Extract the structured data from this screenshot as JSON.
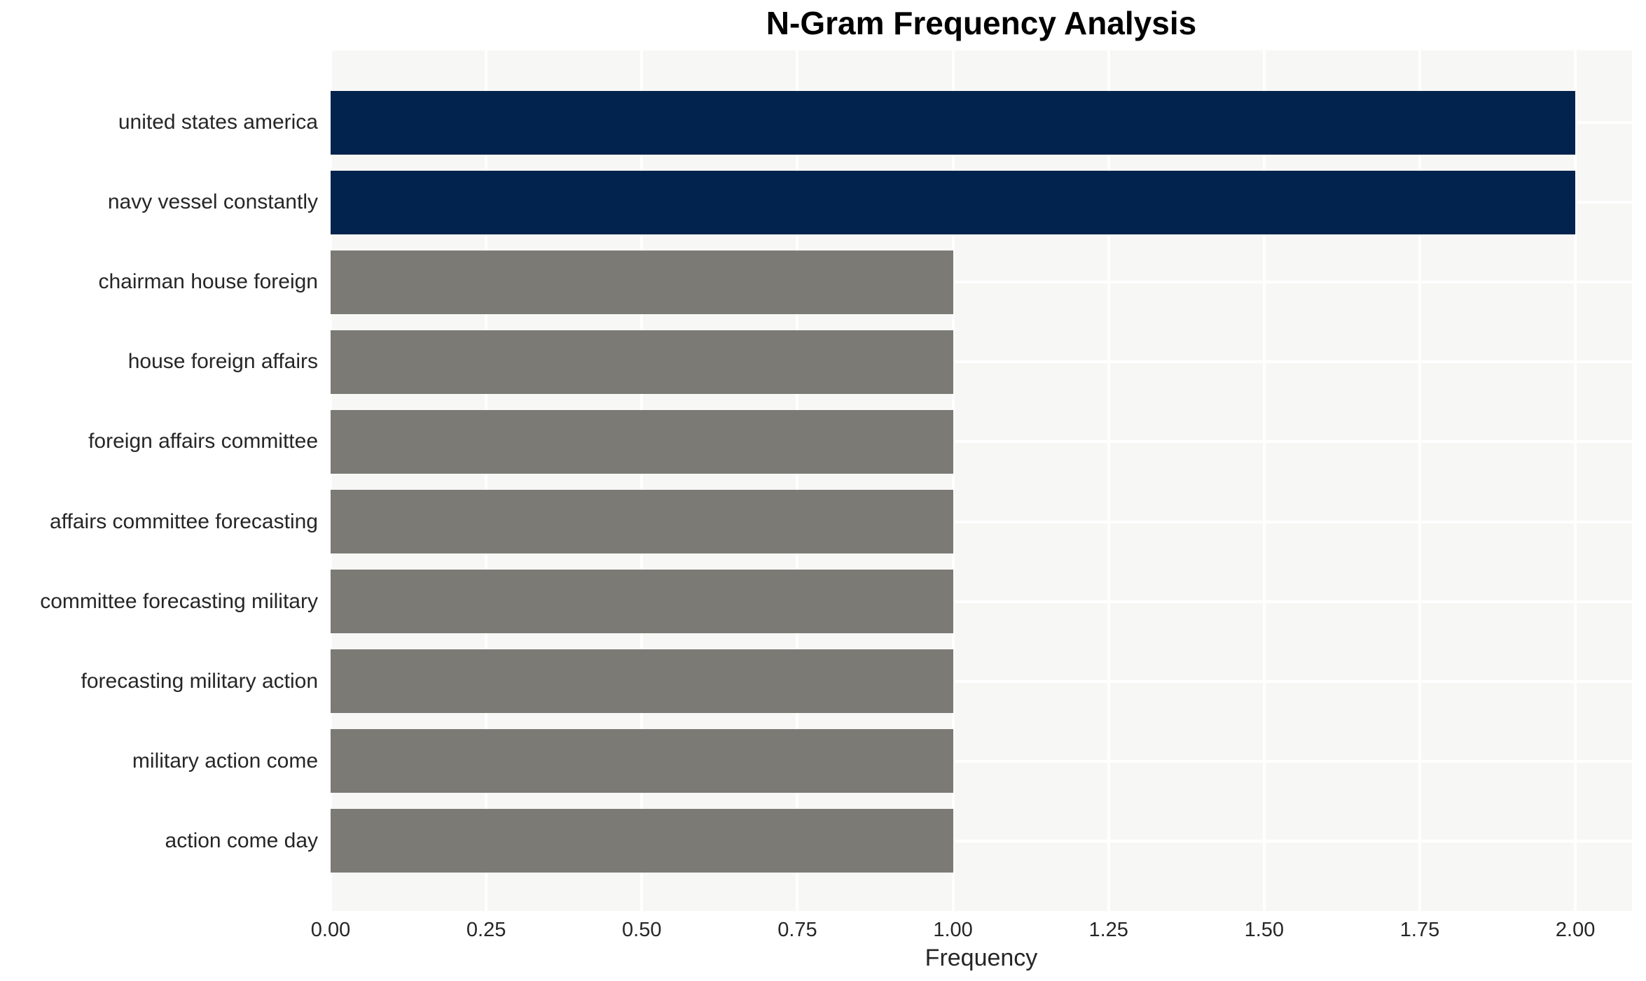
{
  "chart_data": {
    "type": "bar",
    "orientation": "horizontal",
    "title": "N-Gram Frequency Analysis",
    "xlabel": "Frequency",
    "ylabel": "",
    "categories": [
      "united states america",
      "navy vessel constantly",
      "chairman house foreign",
      "house foreign affairs",
      "foreign affairs committee",
      "affairs committee forecasting",
      "committee forecasting military",
      "forecasting military action",
      "military action come",
      "action come day"
    ],
    "values": [
      2,
      2,
      1,
      1,
      1,
      1,
      1,
      1,
      1,
      1
    ],
    "bar_colors": [
      "#02234D",
      "#02234D",
      "#7B7A75",
      "#7B7A75",
      "#7B7A75",
      "#7B7A75",
      "#7B7A75",
      "#7B7A75",
      "#7B7A75",
      "#7B7A75"
    ],
    "xticks": [
      0,
      0.25,
      0.5,
      0.75,
      1.0,
      1.25,
      1.5,
      1.75,
      2.0
    ],
    "xtick_labels": [
      "0.00",
      "0.25",
      "0.50",
      "0.75",
      "1.00",
      "1.25",
      "1.50",
      "1.75",
      "2.00"
    ],
    "xlim": [
      0,
      2.091
    ],
    "grid": true,
    "legend": "none",
    "plot_background": "#F7F7F6",
    "grid_color": "#FFFFFF",
    "figure_background": "#FFFFFF",
    "highlight_color": "#02234D",
    "base_color": "#7B7A75",
    "text_color": "#262626",
    "title_color": "#000000"
  }
}
